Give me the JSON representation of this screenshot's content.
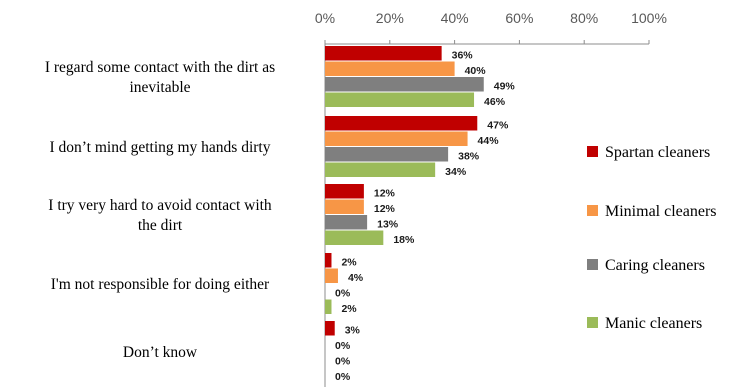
{
  "chart_data": {
    "type": "bar",
    "orientation": "horizontal",
    "x_ticks": [
      "0%",
      "20%",
      "40%",
      "60%",
      "80%",
      "100%"
    ],
    "xlim": [
      0,
      100
    ],
    "grid": false,
    "legend_position": "right",
    "categories": [
      [
        "I regard some contact with the dirt as",
        "inevitable"
      ],
      [
        "I don’t mind getting my hands dirty"
      ],
      [
        "I try very hard to avoid contact with",
        "the dirt"
      ],
      [
        "I'm not responsible for doing either"
      ],
      [
        "Don’t know"
      ]
    ],
    "series": [
      {
        "name": "Spartan cleaners",
        "color": "#c00000",
        "values": [
          36,
          47,
          12,
          2,
          3
        ],
        "labels": [
          "36%",
          "47%",
          "12%",
          "2%",
          "3%"
        ]
      },
      {
        "name": "Minimal cleaners",
        "color": "#f79646",
        "values": [
          40,
          44,
          12,
          4,
          0
        ],
        "labels": [
          "40%",
          "44%",
          "12%",
          "4%",
          "0%"
        ]
      },
      {
        "name": "Caring cleaners",
        "color": "#7f7f7f",
        "values": [
          49,
          38,
          13,
          0,
          0
        ],
        "labels": [
          "49%",
          "38%",
          "13%",
          "0%",
          "0%"
        ]
      },
      {
        "name": "Manic cleaners",
        "color": "#9bbb59",
        "values": [
          46,
          34,
          18,
          2,
          0
        ],
        "labels": [
          "46%",
          "34%",
          "18%",
          "2%",
          "0%"
        ]
      }
    ]
  }
}
